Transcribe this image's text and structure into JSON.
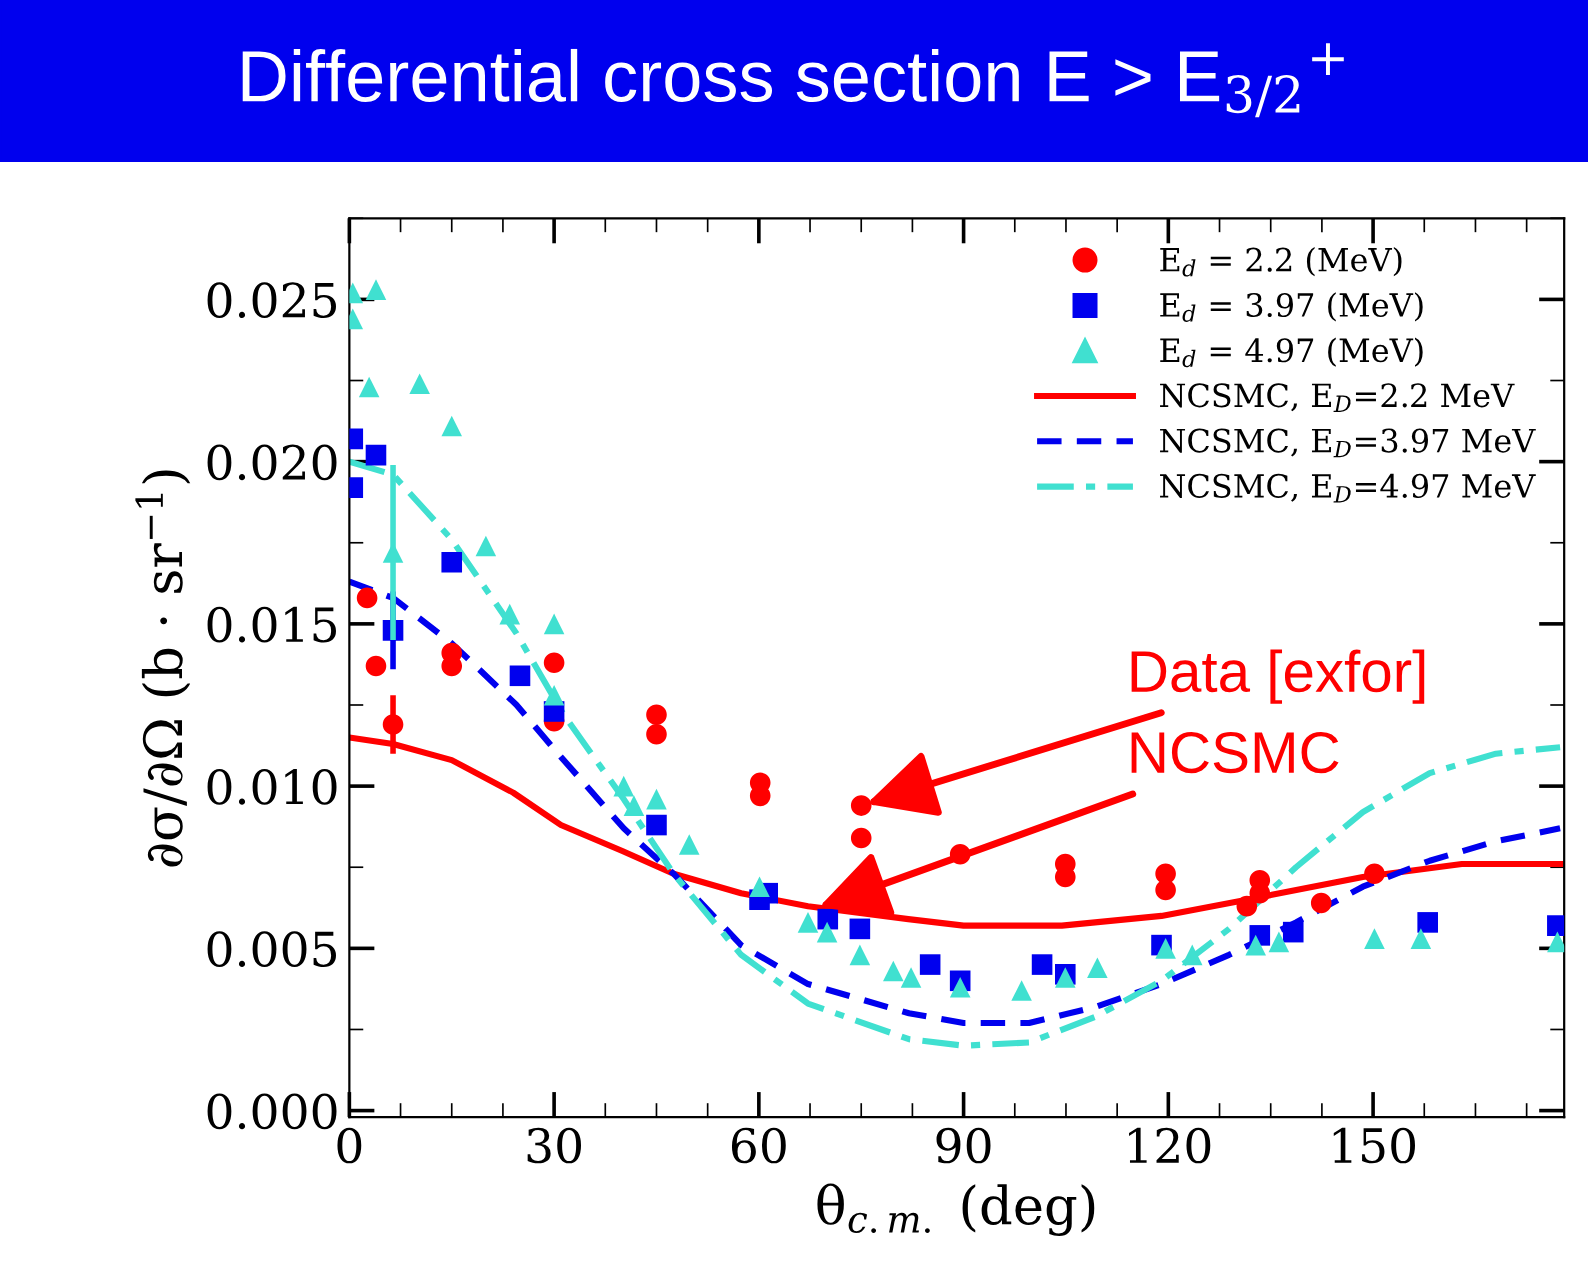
{
  "chart_data": {
    "type": "scatter",
    "title": "Differential cross section E > E$_{3/2}$$^{+}$",
    "xlabel": "θ$_{c.m.}$ (deg)",
    "ylabel": "∂σ/∂Ω (b · sr$^{−1}$)",
    "xlim": [
      0,
      178
    ],
    "ylim": [
      -0.0002,
      0.0275
    ],
    "xticks": [
      0,
      30,
      60,
      90,
      120,
      150
    ],
    "yticks": [
      {
        "value": 0,
        "label": "0.000"
      },
      {
        "value": 0.005,
        "label": "0.005"
      },
      {
        "value": 0.01,
        "label": "0.010"
      },
      {
        "value": 0.015,
        "label": "0.015"
      },
      {
        "value": 0.02,
        "label": "0.020"
      },
      {
        "value": 0.025,
        "label": "0.025"
      }
    ],
    "grid": false,
    "legend": "top right",
    "series": [
      {
        "name": "E$_{d}$ = 2.2 (MeV)",
        "marker": "circle",
        "color": "#ff0000",
        "x": [
          2.6,
          3.9,
          6.4,
          15,
          15,
          30,
          30,
          45,
          45,
          60.2,
          60.2,
          75,
          75,
          89.5,
          104.9,
          104.9,
          119.6,
          119.6,
          133.4,
          133.4,
          131.5,
          142.4,
          150.2
        ],
        "values": [
          0.0158,
          0.0137,
          0.0119,
          0.0141,
          0.0137,
          0.0138,
          0.012,
          0.0122,
          0.0116,
          0.0101,
          0.0097,
          0.0094,
          0.0084,
          0.0079,
          0.0076,
          0.0072,
          0.0073,
          0.0068,
          0.0071,
          0.0067,
          0.0063,
          0.0064,
          0.0073
        ],
        "errors": [
          null,
          null,
          0.0009,
          null,
          null,
          null,
          null,
          null,
          null,
          null,
          null,
          null,
          null,
          null,
          null,
          null,
          null,
          null,
          null,
          null,
          null,
          null,
          null
        ]
      },
      {
        "name": "E$_{d}$ = 3.97 (MeV)",
        "marker": "square",
        "color": "#0000ee",
        "x": [
          0.5,
          0.5,
          3.9,
          6.4,
          15,
          25,
          30,
          45,
          60.1,
          61.3,
          70.1,
          74.8,
          85.1,
          89.5,
          101.5,
          104.9,
          119,
          133.4,
          138.3,
          158,
          177
        ],
        "values": [
          0.0207,
          0.0192,
          0.0202,
          0.0148,
          0.0169,
          0.0134,
          0.0123,
          0.0088,
          0.0065,
          0.0067,
          0.0059,
          0.0056,
          0.0045,
          0.004,
          0.0045,
          0.0042,
          0.0051,
          0.0054,
          0.0055,
          0.0058,
          0.0057
        ],
        "errors": [
          null,
          null,
          null,
          0.0012,
          null,
          null,
          null,
          null,
          null,
          null,
          null,
          null,
          null,
          null,
          null,
          null,
          null,
          null,
          null,
          null,
          null
        ]
      },
      {
        "name": "E$_{d}$ = 4.97 (MeV)",
        "marker": "triangle",
        "color": "#40e0d0",
        "x": [
          0.5,
          0.5,
          3.9,
          2.9,
          10.3,
          15,
          6.4,
          20,
          23.5,
          30,
          30,
          40.2,
          41.7,
          45,
          49.8,
          60.1,
          67.2,
          70,
          74.8,
          79.7,
          82.3,
          89.5,
          98.5,
          104.9,
          109.6,
          119.6,
          123.5,
          132.8,
          136.2,
          150.2,
          157,
          177
        ],
        "values": [
          0.0252,
          0.0244,
          0.0253,
          0.0223,
          0.0224,
          0.0211,
          0.0172,
          0.0174,
          0.0153,
          0.015,
          0.0128,
          0.01,
          0.0094,
          0.0096,
          0.0082,
          0.0069,
          0.0058,
          0.0055,
          0.0048,
          0.0043,
          0.0041,
          0.0038,
          0.0037,
          0.0041,
          0.0044,
          0.005,
          0.0048,
          0.0051,
          0.0052,
          0.0053,
          0.0053,
          0.0052
        ],
        "errors": [
          null,
          null,
          null,
          null,
          null,
          null,
          0.0027,
          null,
          null,
          null,
          null,
          null,
          null,
          null,
          null,
          null,
          null,
          null,
          null,
          null,
          null,
          null,
          null,
          null,
          null,
          null,
          null,
          null,
          null,
          null,
          null,
          null
        ]
      },
      {
        "name": "NCSMC, E$_{D}$=2.2 MeV",
        "type": "line",
        "line_style": "solid",
        "color": "#ff0000",
        "x": [
          0,
          6.4,
          15,
          24,
          31,
          40,
          47.5,
          57.4,
          67.2,
          81.9,
          90,
          104.4,
          119,
          134,
          148.5,
          163,
          177.5
        ],
        "values": [
          0.0115,
          0.0113,
          0.0108,
          0.0098,
          0.0088,
          0.008,
          0.0073,
          0.0067,
          0.0063,
          0.0059,
          0.0057,
          0.0057,
          0.006,
          0.0066,
          0.0072,
          0.0076,
          0.0076
        ]
      },
      {
        "name": "NCSMC, E$_{D}$=3.97 MeV",
        "type": "line",
        "line_style": "dashed",
        "color": "#0000ee",
        "x": [
          0,
          6.4,
          15,
          24.5,
          31,
          40.2,
          47.5,
          57.4,
          67.2,
          82,
          90,
          99.6,
          109.4,
          119,
          128.9,
          138.7,
          148.5,
          158.3,
          168,
          177.4
        ],
        "values": [
          0.0163,
          0.0158,
          0.0144,
          0.0125,
          0.0109,
          0.0087,
          0.0073,
          0.0051,
          0.0039,
          0.003,
          0.0027,
          0.0027,
          0.0032,
          0.0039,
          0.0048,
          0.0058,
          0.0069,
          0.0077,
          0.0083,
          0.0087
        ]
      },
      {
        "name": "NCSMC, E$_{D}$=4.97 MeV",
        "type": "line",
        "line_style": "dashdot",
        "color": "#40e0d0",
        "x": [
          0,
          6.4,
          15,
          24.5,
          31.4,
          40.2,
          47.5,
          57.4,
          67.2,
          82,
          90,
          99.6,
          109.4,
          119,
          128.9,
          138.7,
          148.5,
          158.3,
          168,
          177.4
        ],
        "values": [
          0.02,
          0.0196,
          0.0176,
          0.0147,
          0.0122,
          0.0096,
          0.0073,
          0.0048,
          0.0033,
          0.0022,
          0.002,
          0.0021,
          0.0029,
          0.004,
          0.0056,
          0.0075,
          0.0092,
          0.0104,
          0.011,
          0.0112
        ]
      }
    ],
    "annotations": [
      {
        "text": "Data [exfor]",
        "x": 75,
        "y": 0.0094
      },
      {
        "text": "NCSMC",
        "x": 68,
        "y": 0.0062
      }
    ]
  }
}
